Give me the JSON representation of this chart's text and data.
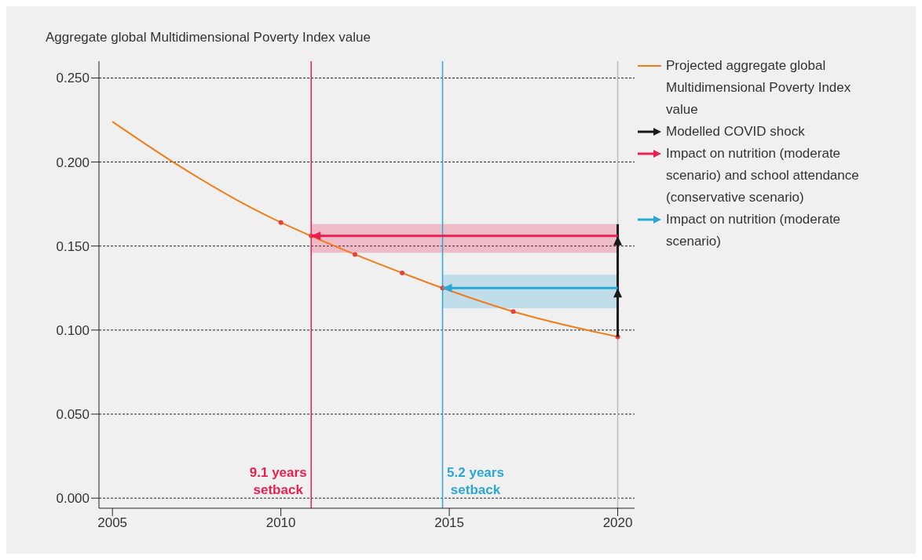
{
  "chart_data": {
    "type": "line",
    "ylabel": "Aggregate global Multidimensional Poverty Index value",
    "xlim": [
      2004.6,
      2020.5
    ],
    "xticks": [
      2005,
      2010,
      2015,
      2020
    ],
    "ylim": [
      -0.006,
      0.26
    ],
    "yticks": [
      {
        "value": 0,
        "label": "0.000"
      },
      {
        "value": 0.05,
        "label": "0.050"
      },
      {
        "value": 0.1,
        "label": "0.100"
      },
      {
        "value": 0.15,
        "label": "0.150"
      },
      {
        "value": 0.2,
        "label": "0.200"
      },
      {
        "value": 0.25,
        "label": "0.250"
      }
    ],
    "grid": "y",
    "legend": "top right",
    "series": [
      {
        "name": "Projected aggregate global Multidimensional Poverty Index value",
        "color": "#f07d1a",
        "x": [
          2005,
          2006.8,
          2009.1,
          2010,
          2010.9,
          2012.2,
          2013.6,
          2014.8,
          2016.9,
          2020
        ],
        "values": [
          0.224,
          0.2,
          0.173,
          0.164,
          0.156,
          0.145,
          0.134,
          0.125,
          0.111,
          0.096
        ]
      },
      {
        "type": "scatter",
        "color": "#e8403a",
        "x": [
          2010,
          2010.9,
          2012.2,
          2013.6,
          2014.8,
          2016.9,
          2020
        ],
        "values": [
          0.164,
          0.156,
          0.145,
          0.134,
          0.125,
          0.111,
          0.096
        ]
      },
      {
        "name": "Modelled COVID shock",
        "color": "#1a1a1a",
        "x": [
          2020,
          2020,
          2020,
          2020
        ],
        "values": [
          0.096,
          0.125,
          0.156,
          0.163
        ]
      },
      {
        "name": "Impact on nutrition (moderate scenario) and school attendance (conservative scenario)",
        "color": "#e8204f",
        "x": [
          2020,
          2010.9
        ],
        "values": [
          0.156,
          0.156
        ],
        "lower": [
          0.146,
          0.146
        ],
        "upper": [
          0.163,
          0.163
        ]
      },
      {
        "name": "Impact on nutrition (moderate scenario)",
        "color": "#2aa7d6",
        "x": [
          2020,
          2014.8
        ],
        "values": [
          0.125,
          0.125
        ],
        "lower": [
          0.113,
          0.113
        ],
        "upper": [
          0.133,
          0.133
        ]
      }
    ],
    "ref_lines": [
      {
        "axis": "x",
        "value": 2010.9,
        "label": "9.1 years setback",
        "color": "#e8204f"
      },
      {
        "axis": "x",
        "value": 2014.8,
        "label": "5.2 years setback",
        "color": "#2aa7d6"
      },
      {
        "axis": "x",
        "value": 2020,
        "color": "#bbbbbb"
      }
    ]
  }
}
